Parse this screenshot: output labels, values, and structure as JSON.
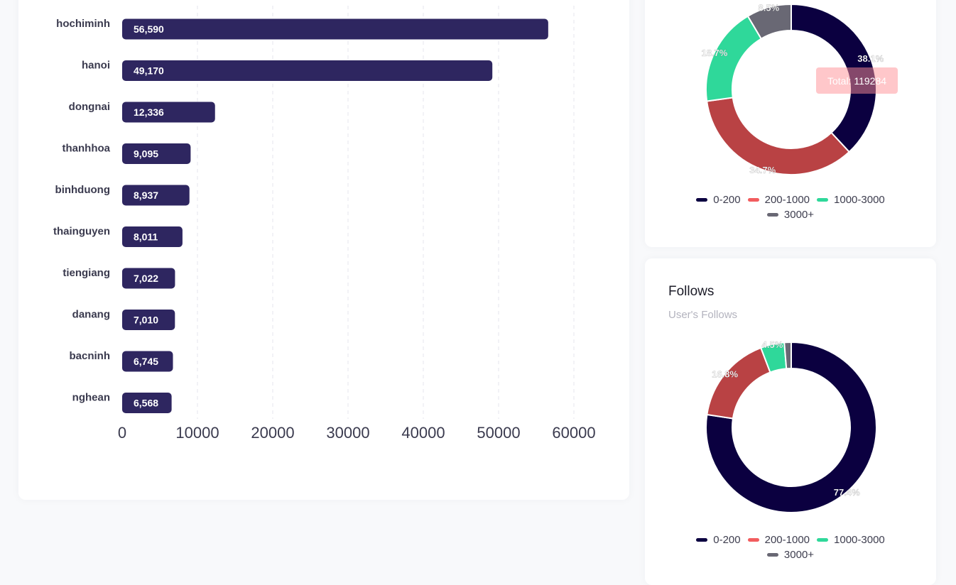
{
  "colors": {
    "bar": "#2e2660",
    "grid": "#e6e6ec",
    "axis_text": "#3a3a4e",
    "label_text": "#3a3a4e"
  },
  "chart_data": [
    {
      "type": "bar",
      "orientation": "horizontal",
      "categories": [
        "hochiminh",
        "hanoi",
        "dongnai",
        "thanhhoa",
        "binhduong",
        "thainguyen",
        "tiengiang",
        "danang",
        "bacninh",
        "nghean"
      ],
      "values": [
        56590,
        49170,
        12336,
        9095,
        8937,
        8011,
        7022,
        7010,
        6745,
        6568
      ],
      "value_labels": [
        "56,590",
        "49,170",
        "12,336",
        "9,095",
        "8,937",
        "8,011",
        "7,022",
        "7,010",
        "6,745",
        "6,568"
      ],
      "xlim": [
        0,
        60000
      ],
      "xticks": [
        "0",
        "10000",
        "20000",
        "30000",
        "40000",
        "50000",
        "60000"
      ],
      "grid": true
    },
    {
      "type": "pie",
      "donut": true,
      "labels": [
        "0-200",
        "200-1000",
        "1000-3000",
        "3000+"
      ],
      "values": [
        38.1,
        34.7,
        18.7,
        8.5
      ],
      "value_labels": [
        "38.1%",
        "34.7%",
        "18.7%",
        "8.5%"
      ],
      "colors": [
        "#0b0040",
        "#b94244",
        "#2fd89a",
        "#696874"
      ],
      "legend_colors": [
        "#0b0040",
        "#f25c5e",
        "#2fd89a",
        "#696874"
      ],
      "total_label": "Total: 119284"
    },
    {
      "type": "pie",
      "donut": true,
      "title": "Follows",
      "subtitle": "User's Follows",
      "labels": [
        "0-200",
        "200-1000",
        "1000-3000",
        "3000+"
      ],
      "values": [
        77.4,
        16.8,
        4.5,
        1.3
      ],
      "value_labels": [
        "77.4%",
        "16.8%",
        "4.5%",
        ""
      ],
      "colors": [
        "#0b0040",
        "#b94244",
        "#2fd89a",
        "#696874"
      ],
      "legend_colors": [
        "#0b0040",
        "#f25c5e",
        "#2fd89a",
        "#696874"
      ]
    }
  ]
}
